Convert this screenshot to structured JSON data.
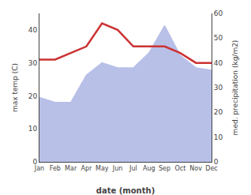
{
  "chart_data": {
    "type": "line",
    "categories": [
      "Jan",
      "Feb",
      "Mar",
      "Apr",
      "May",
      "Jun",
      "Jul",
      "Aug",
      "Sep",
      "Oct",
      "Nov",
      "Dec"
    ],
    "xlabel": "date (month)",
    "ylabel": "max temp (C)",
    "y2label": "med. precipitation (kg/m2)",
    "series": [
      {
        "type": "line",
        "color": "#cc3333",
        "values": [
          31,
          31,
          33,
          35,
          42,
          40,
          35,
          35,
          35,
          33,
          30,
          30
        ]
      },
      {
        "type": "area",
        "axis": "y2",
        "color": "#b8c0e8",
        "values": [
          26,
          24,
          24,
          35,
          40,
          38,
          38,
          44,
          55,
          43,
          38,
          37
        ]
      }
    ],
    "ylim": [
      0,
      45
    ],
    "yticks": [
      0,
      10,
      20,
      30,
      40
    ],
    "y2lim": [
      0,
      60
    ],
    "y2ticks": [
      0,
      10,
      20,
      30,
      40,
      50,
      60
    ],
    "grid": false
  }
}
